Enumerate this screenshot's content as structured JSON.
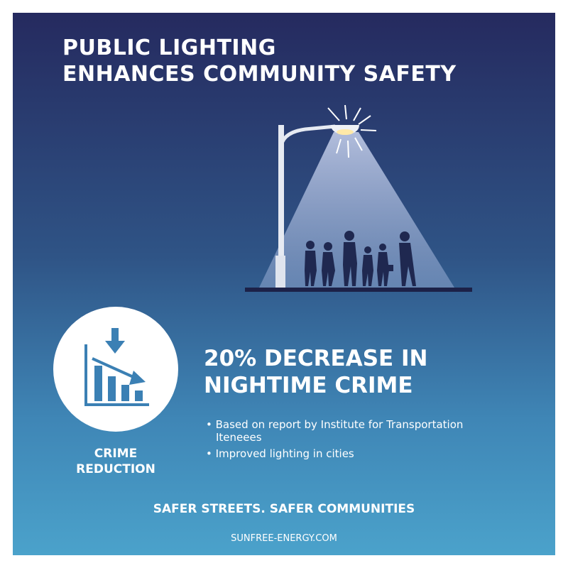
{
  "header": {
    "title_lines": [
      "PUBLIC LIGHTING",
      "ENHANCES COMMUNITY SAFETY"
    ]
  },
  "stat": {
    "headline_lines": [
      "20% DECREASE IN",
      "NIGHTIME CRIME"
    ],
    "bullets": [
      "Based on report by Institute for Transportation Iteneees",
      "Improved lighting in cities"
    ]
  },
  "icon_label_lines": [
    "CRIME",
    "REDUCTION"
  ],
  "tagline": "SAFER STREETS. SAFER COMMUNITIES",
  "website": "SUNFREE-ENERGY.COM"
}
